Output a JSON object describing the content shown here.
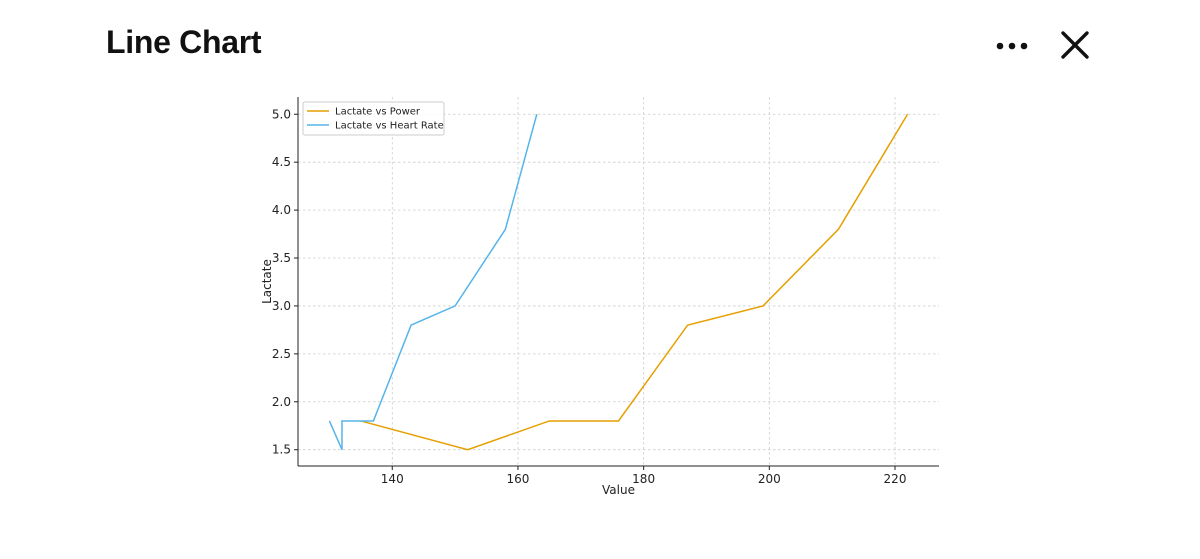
{
  "header": {
    "title": "Line Chart",
    "more_icon": "more-horizontal-icon",
    "close_icon": "close-icon"
  },
  "chart_data": {
    "type": "line",
    "xlabel": "Value",
    "ylabel": "Lactate",
    "xlim": [
      125,
      227
    ],
    "ylim": [
      1.33,
      5.18
    ],
    "x_ticks": [
      140,
      160,
      180,
      200,
      220
    ],
    "y_ticks": [
      1.5,
      2.0,
      2.5,
      3.0,
      3.5,
      4.0,
      4.5,
      5.0
    ],
    "x_tick_labels": [
      "140",
      "160",
      "180",
      "200",
      "220"
    ],
    "y_tick_labels": [
      "1.5",
      "2.0",
      "2.5",
      "3.0",
      "3.5",
      "4.0",
      "4.5",
      "5.0"
    ],
    "grid": true,
    "legend_position": "top-left",
    "series": [
      {
        "name": "Lactate vs Power",
        "color": "#E69F00",
        "x": [
          135,
          152,
          165,
          176,
          187,
          199,
          211,
          222
        ],
        "y": [
          1.8,
          1.5,
          1.8,
          1.8,
          2.8,
          3.0,
          3.8,
          5.0
        ]
      },
      {
        "name": "Lactate vs Heart Rate",
        "color": "#56B4E9",
        "x": [
          130,
          132,
          132,
          137,
          143,
          150,
          158,
          163
        ],
        "y": [
          1.8,
          1.5,
          1.8,
          1.8,
          2.8,
          3.0,
          3.8,
          5.0
        ]
      }
    ]
  }
}
